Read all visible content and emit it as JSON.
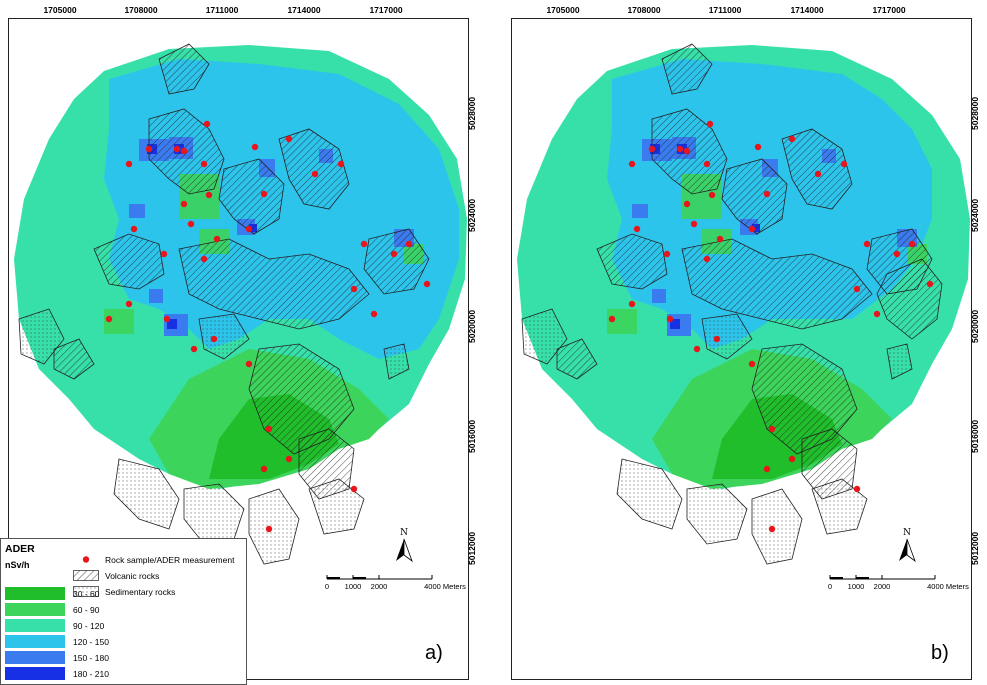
{
  "panels": [
    {
      "id": "a",
      "label": "a)"
    },
    {
      "id": "b",
      "label": "b)"
    }
  ],
  "x_ticks": [
    "1705000",
    "1708000",
    "1711000",
    "1714000",
    "1717000"
  ],
  "y_ticks": [
    "5028000",
    "5024000",
    "5020000",
    "5016000",
    "5012000"
  ],
  "north_label": "N",
  "scale": {
    "labels": [
      "0",
      "1000",
      "2000",
      "4000 Meters"
    ]
  },
  "legend": {
    "title": "ADER",
    "unit": "nSv/h",
    "classes": [
      {
        "label": "30 - 60",
        "color": "#1fbe2a"
      },
      {
        "label": "60 - 90",
        "color": "#3cd45a"
      },
      {
        "label": "90 - 120",
        "color": "#37e0a9"
      },
      {
        "label": "120 - 150",
        "color": "#2dc4ec"
      },
      {
        "label": "150 - 180",
        "color": "#3a7cf0"
      },
      {
        "label": "180 - 210",
        "color": "#1830e4"
      }
    ],
    "symbols": [
      {
        "label": "Rock sample/ADER measurement",
        "icon": "red-dot-icon"
      },
      {
        "label": "Volcanic rocks",
        "icon": "hatch-icon"
      },
      {
        "label": "Sedimentary rocks",
        "icon": "dots-icon"
      }
    ]
  },
  "colors": {
    "sample_point": "#e8161c",
    "background": "#ffffff"
  }
}
